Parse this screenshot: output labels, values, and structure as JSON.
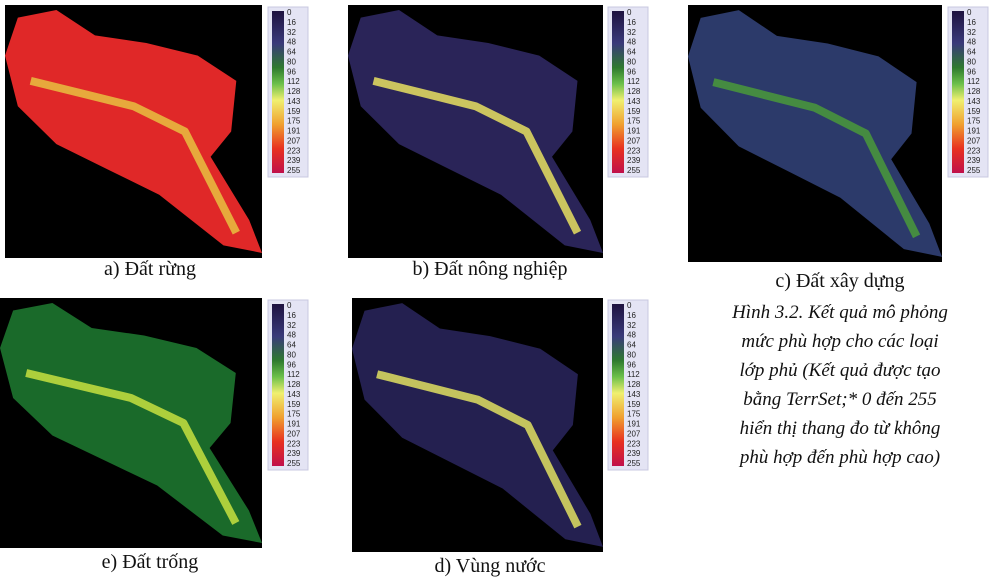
{
  "panels": [
    {
      "caption": "a) Đất rừng",
      "legend": [
        "0",
        "16",
        "32",
        "48",
        "64",
        "80",
        "96",
        "112",
        "128",
        "143",
        "159",
        "175",
        "191",
        "207",
        "223",
        "239",
        "255"
      ]
    },
    {
      "caption": "b) Đất nông nghiệp",
      "legend": [
        "0",
        "16",
        "32",
        "48",
        "64",
        "80",
        "96",
        "112",
        "128",
        "143",
        "159",
        "175",
        "191",
        "207",
        "223",
        "239",
        "255"
      ]
    },
    {
      "caption": "c) Đất xây dựng",
      "legend": [
        "0",
        "16",
        "32",
        "48",
        "64",
        "80",
        "96",
        "112",
        "128",
        "143",
        "159",
        "175",
        "191",
        "207",
        "223",
        "239",
        "255"
      ]
    },
    {
      "caption": "e) Đất trống",
      "legend": [
        "0",
        "16",
        "32",
        "48",
        "64",
        "80",
        "96",
        "112",
        "128",
        "143",
        "159",
        "175",
        "191",
        "207",
        "223",
        "239",
        "255"
      ]
    },
    {
      "caption": "d) Vùng nước",
      "legend": [
        "0",
        "16",
        "32",
        "48",
        "64",
        "80",
        "96",
        "112",
        "128",
        "143",
        "159",
        "175",
        "191",
        "207",
        "223",
        "239",
        "255"
      ]
    }
  ],
  "figure_caption": [
    "Hình 3.2. Kết quả mô phỏng",
    "mức  phù hợp cho các loại",
    "lớp phủ (Kết quả được tạo",
    "bằng TerrSet;* 0 đến 255",
    "hiển thị thang đo từ không",
    "phù hợp đến phù hợp cao)"
  ]
}
